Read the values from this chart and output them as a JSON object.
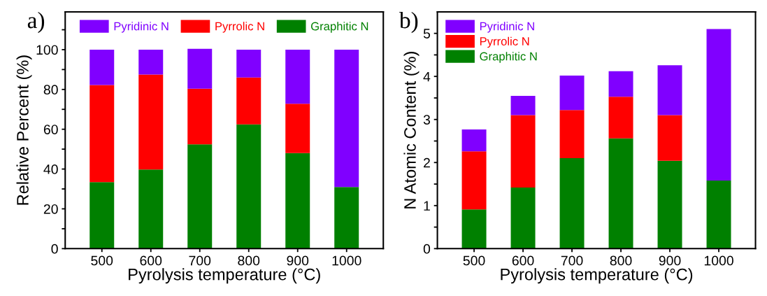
{
  "chart_data": [
    {
      "type": "bar",
      "title": "a)",
      "stacked": true,
      "xlabel": "Pyrolysis temperature (°C)",
      "ylabel": "Relative Percent (%)",
      "categories": [
        "500",
        "600",
        "700",
        "800",
        "900",
        "1000"
      ],
      "series": [
        {
          "name": "Graphitic N",
          "color": "#008000",
          "values": [
            33.4,
            39.8,
            52.4,
            62.4,
            48,
            31
          ]
        },
        {
          "name": "Pyrrolic N",
          "color": "#ff0000",
          "values": [
            48.8,
            47.7,
            28.0,
            23.6,
            24.8,
            0
          ]
        },
        {
          "name": "Pyridinic N",
          "color": "#8000ff",
          "values": [
            17.8,
            12.5,
            20.0,
            14,
            27.2,
            69
          ]
        }
      ],
      "ylim": [
        0,
        119
      ],
      "yticks": [
        0,
        {
          "value": 10,
          "label": null
        },
        20,
        {
          "value": 30,
          "label": null
        },
        40,
        {
          "value": 50,
          "label": null
        },
        60,
        {
          "value": 70,
          "label": null
        },
        80,
        {
          "value": 90,
          "label": null
        },
        100,
        {
          "value": 110,
          "label": null
        }
      ],
      "legend": "top",
      "grid": false
    },
    {
      "type": "bar",
      "title": "b)",
      "stacked": true,
      "xlabel": "Pyrolysis temperature (°C)",
      "ylabel": "N Atomic Content (%)",
      "categories": [
        "500",
        "600",
        "700",
        "800",
        "900",
        "1000"
      ],
      "series": [
        {
          "name": "Graphitic N",
          "color": "#008000",
          "values": [
            0.91,
            1.42,
            2.1,
            2.56,
            2.04,
            1.58
          ]
        },
        {
          "name": "Pyrrolic N",
          "color": "#ff0000",
          "values": [
            1.35,
            1.68,
            1.12,
            0.97,
            1.06,
            0
          ]
        },
        {
          "name": "Pyridinic N",
          "color": "#8000ff",
          "values": [
            0.51,
            0.45,
            0.8,
            0.59,
            1.16,
            3.52
          ]
        }
      ],
      "ylim": [
        0,
        5.5
      ],
      "yticks": [
        0,
        {
          "value": 0.5,
          "label": null
        },
        1,
        {
          "value": 1.5,
          "label": null
        },
        2,
        {
          "value": 2.5,
          "label": null
        },
        3,
        {
          "value": 3.5,
          "label": null
        },
        4,
        {
          "value": 4.5,
          "label": null
        },
        5
      ],
      "legend": "top left",
      "grid": false
    }
  ]
}
